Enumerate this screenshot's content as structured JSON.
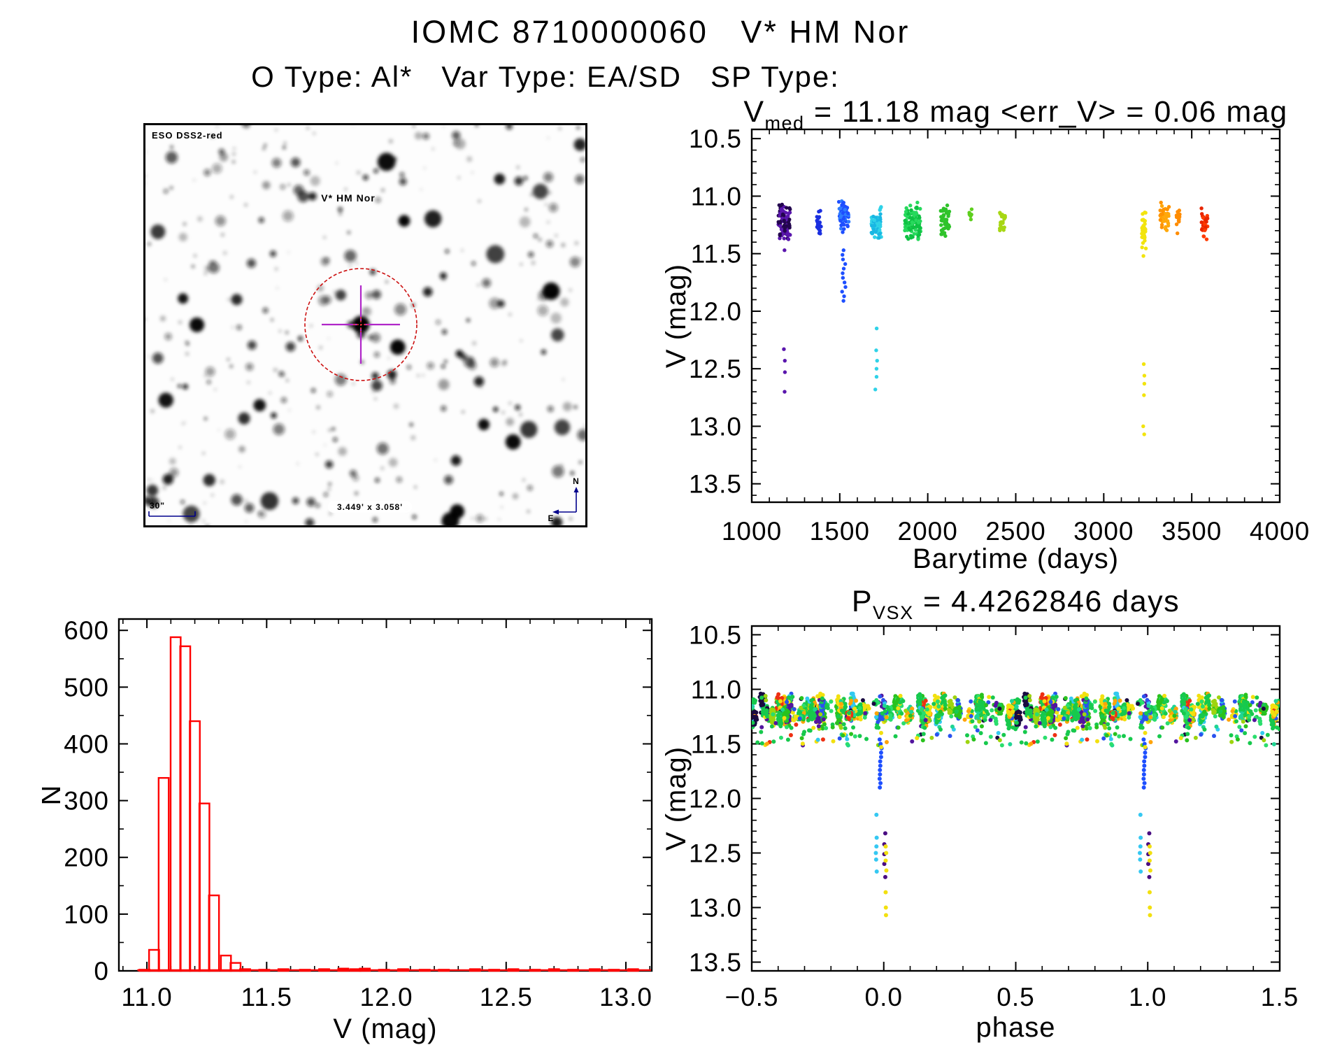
{
  "page": {
    "title": "IOMC 8710000060   V* HM Nor",
    "subtitle": "O Type: Al*   Var Type: EA/SD   SP Type:"
  },
  "finding_chart": {
    "survey_label": "ESO DSS2-red",
    "target_label": "V* HM Nor",
    "scale_label": "30\"",
    "fov_label": "3.449' x 3.058'",
    "compass_north": "N",
    "compass_east": "E",
    "annotation_color": "#00008b",
    "target_label_color": "#cc1111",
    "circle_color": "#cc1111",
    "cross_color": "#b026c9",
    "center_mark_color": "#e03030",
    "star_seed": 11,
    "star_count": 340,
    "big_star_count": 30
  },
  "chart_data": [
    {
      "type": "scatter",
      "title_parts": {
        "main": "V",
        "sub": "med",
        "rest": " = 11.18 mag <err_V> = 0.06 mag"
      },
      "xlabel": "Barytime (days)",
      "ylabel": "V (mag)",
      "xlim": [
        1000,
        4000
      ],
      "ylim": [
        10.42,
        13.66
      ],
      "xticks": [
        {
          "v": 1000,
          "l": "1000"
        },
        {
          "v": 1500,
          "l": "1500"
        },
        {
          "v": 2000,
          "l": "2000"
        },
        {
          "v": 2500,
          "l": "2500"
        },
        {
          "v": 3000,
          "l": "3000"
        },
        {
          "v": 3500,
          "l": "3500"
        },
        {
          "v": 4000,
          "l": "4000"
        }
      ],
      "yticks": [
        {
          "v": 10.5,
          "l": "10.5"
        },
        {
          "v": 11.0,
          "l": "11.0"
        },
        {
          "v": 11.5,
          "l": "11.5"
        },
        {
          "v": 12.0,
          "l": "12.0"
        },
        {
          "v": 12.5,
          "l": "12.5"
        },
        {
          "v": 13.0,
          "l": "13.0"
        },
        {
          "v": 13.5,
          "l": "13.5"
        }
      ],
      "x_minor": 100,
      "y_minor": 0.1,
      "grid": false,
      "seed": 77,
      "clusters": [
        {
          "x": 1185,
          "dx": 34,
          "n": 95,
          "y": [
            11.05,
            11.42
          ],
          "colors": [
            "#23054e",
            "#5a16ad"
          ]
        },
        {
          "x": 1382,
          "dx": 12,
          "n": 26,
          "y": [
            11.08,
            11.38
          ],
          "colors": [
            "#1b2fe0"
          ]
        },
        {
          "x": 1523,
          "dx": 28,
          "n": 60,
          "y": [
            10.98,
            11.33
          ],
          "colors": [
            "#1e4fff",
            "#2f7dff"
          ]
        },
        {
          "x": 1708,
          "dx": 28,
          "n": 55,
          "y": [
            11.08,
            11.4
          ],
          "colors": [
            "#19b7e3",
            "#2fd2e8"
          ]
        },
        {
          "x": 1915,
          "dx": 45,
          "n": 115,
          "y": [
            11.04,
            11.4
          ],
          "colors": [
            "#0fc143",
            "#27d95c"
          ]
        },
        {
          "x": 2098,
          "dx": 25,
          "n": 45,
          "y": [
            11.06,
            11.37
          ],
          "colors": [
            "#2fc32a"
          ]
        },
        {
          "x": 2243,
          "dx": 8,
          "n": 9,
          "y": [
            11.1,
            11.23
          ],
          "colors": [
            "#5ecf1e"
          ]
        },
        {
          "x": 2425,
          "dx": 16,
          "n": 22,
          "y": [
            11.08,
            11.32
          ],
          "colors": [
            "#a7d714"
          ]
        },
        {
          "x": 3228,
          "dx": 12,
          "n": 34,
          "y": [
            11.1,
            11.47
          ],
          "colors": [
            "#f2e40d"
          ]
        },
        {
          "x": 3346,
          "dx": 25,
          "n": 42,
          "y": [
            11.04,
            11.31
          ],
          "colors": [
            "#ffa80a",
            "#ff9300"
          ]
        },
        {
          "x": 3424,
          "dx": 12,
          "n": 16,
          "y": [
            11.09,
            11.35
          ],
          "colors": [
            "#ff8c00"
          ]
        },
        {
          "x": 3572,
          "dx": 18,
          "n": 30,
          "y": [
            11.06,
            11.39
          ],
          "colors": [
            "#ff3a00",
            "#e82500"
          ]
        }
      ],
      "trails": [
        {
          "x": 1523,
          "dx": 10,
          "color": "#1e4fff",
          "ys": [
            11.47,
            11.51,
            11.55,
            11.59,
            11.63,
            11.67,
            11.71,
            11.75,
            11.79,
            11.83,
            11.87,
            11.91
          ]
        }
      ],
      "outliers": [
        {
          "x": 1185,
          "dx": 6,
          "color": "#5a16ad",
          "ys": [
            11.47,
            12.33,
            12.43,
            12.53,
            12.7
          ]
        },
        {
          "x": 1708,
          "dx": 6,
          "color": "#2fd2e8",
          "ys": [
            12.15,
            12.34,
            12.43,
            12.5,
            12.57,
            12.68
          ]
        },
        {
          "x": 3228,
          "dx": 6,
          "color": "#f2e40d",
          "ys": [
            11.52,
            12.46,
            12.56,
            12.63,
            12.73,
            13.0,
            13.07
          ]
        }
      ]
    },
    {
      "type": "histogram",
      "xlabel": "V (mag)",
      "ylabel": "N",
      "xlim": [
        10.883,
        13.108
      ],
      "ylim": [
        620,
        0
      ],
      "xticks": [
        {
          "v": 11.0,
          "l": "11.0"
        },
        {
          "v": 11.5,
          "l": "11.5"
        },
        {
          "v": 12.0,
          "l": "12.0"
        },
        {
          "v": 12.5,
          "l": "12.5"
        },
        {
          "v": 13.0,
          "l": "13.0"
        }
      ],
      "yticks": [
        {
          "v": 0,
          "l": "0"
        },
        {
          "v": 100,
          "l": "100"
        },
        {
          "v": 200,
          "l": "200"
        },
        {
          "v": 300,
          "l": "300"
        },
        {
          "v": 400,
          "l": "400"
        },
        {
          "v": 500,
          "l": "500"
        },
        {
          "v": 600,
          "l": "600"
        }
      ],
      "x_minor": 0.1,
      "y_minor": 50,
      "bar_color": "#ff0000",
      "bin_width": 0.042,
      "baseline_extent": [
        10.96,
        13.105
      ],
      "bins": [
        {
          "x": 10.99,
          "n": 2
        },
        {
          "x": 11.03,
          "n": 37
        },
        {
          "x": 11.07,
          "n": 340
        },
        {
          "x": 11.12,
          "n": 588
        },
        {
          "x": 11.16,
          "n": 572
        },
        {
          "x": 11.2,
          "n": 440
        },
        {
          "x": 11.24,
          "n": 295
        },
        {
          "x": 11.28,
          "n": 133
        },
        {
          "x": 11.33,
          "n": 27
        },
        {
          "x": 11.37,
          "n": 14
        },
        {
          "x": 11.41,
          "n": 3
        },
        {
          "x": 11.49,
          "n": 2
        },
        {
          "x": 11.57,
          "n": 3
        },
        {
          "x": 11.66,
          "n": 2
        },
        {
          "x": 11.74,
          "n": 3
        },
        {
          "x": 11.82,
          "n": 4
        },
        {
          "x": 11.87,
          "n": 3
        },
        {
          "x": 11.91,
          "n": 4
        },
        {
          "x": 11.99,
          "n": 2
        },
        {
          "x": 12.07,
          "n": 3
        },
        {
          "x": 12.16,
          "n": 2
        },
        {
          "x": 12.24,
          "n": 2
        },
        {
          "x": 12.37,
          "n": 3
        },
        {
          "x": 12.45,
          "n": 2
        },
        {
          "x": 12.53,
          "n": 3
        },
        {
          "x": 12.62,
          "n": 2
        },
        {
          "x": 12.7,
          "n": 3
        },
        {
          "x": 12.78,
          "n": 2
        },
        {
          "x": 12.87,
          "n": 3
        },
        {
          "x": 12.95,
          "n": 2
        },
        {
          "x": 13.03,
          "n": 3
        }
      ]
    },
    {
      "type": "scatter",
      "title_parts": {
        "main": "P",
        "sub": "VSX",
        "rest": " = 4.4262846 days"
      },
      "xlabel": "phase",
      "ylabel": "V (mag)",
      "xlim": [
        -0.5,
        1.5
      ],
      "ylim": [
        10.42,
        13.58
      ],
      "xticks": [
        {
          "v": -0.5,
          "l": "−0.5"
        },
        {
          "v": 0.0,
          "l": "0.0"
        },
        {
          "v": 0.5,
          "l": "0.5"
        },
        {
          "v": 1.0,
          "l": "1.0"
        },
        {
          "v": 1.5,
          "l": "1.5"
        }
      ],
      "yticks": [
        {
          "v": 10.5,
          "l": "10.5"
        },
        {
          "v": 11.0,
          "l": "11.0"
        },
        {
          "v": 11.5,
          "l": "11.5"
        },
        {
          "v": 12.0,
          "l": "12.0"
        },
        {
          "v": 12.5,
          "l": "12.5"
        },
        {
          "v": 13.0,
          "l": "13.0"
        },
        {
          "v": 13.5,
          "l": "13.5"
        }
      ],
      "x_minor": 0.1,
      "y_minor": 0.1,
      "seed": 42,
      "band": {
        "y_top": 11.04,
        "y_bottom": 11.44,
        "clumps": 85,
        "clump_w": [
          0.004,
          0.014
        ],
        "clump_n": [
          6,
          34
        ],
        "singles": 180,
        "colors": [
          [
            "#17c94d",
            26
          ],
          [
            "#2ade6d",
            12
          ],
          [
            "#29c21d",
            10
          ],
          [
            "#1fd593",
            7
          ],
          [
            "#f2e00f",
            10
          ],
          [
            "#ffa40a",
            8
          ],
          [
            "#32c9f0",
            6
          ],
          [
            "#2a52ee",
            4
          ],
          [
            "#190a40",
            5
          ],
          [
            "#53159e",
            5
          ],
          [
            "#ee3012",
            3
          ],
          [
            "#9ed40e",
            4
          ]
        ],
        "thin_windows": [
          [
            -0.05,
            0.05
          ],
          [
            0.95,
            1.05
          ]
        ],
        "thin_factor": 0.5
      },
      "eclipse_groups": [
        {
          "x": -0.012,
          "dx": 0.004,
          "color": "#1e4fff",
          "ys": [
            11.46,
            11.5,
            11.54,
            11.58,
            11.62,
            11.66,
            11.7,
            11.74,
            11.78,
            11.82,
            11.86,
            11.9
          ]
        },
        {
          "x": -0.01,
          "dx": 0.002,
          "color": "#f2e00f",
          "ys": [
            11.4,
            11.53
          ]
        },
        {
          "x": -0.028,
          "dx": 0.002,
          "color": "#35c8f2",
          "ys": [
            12.15,
            12.36,
            12.44,
            12.5,
            12.56,
            12.67
          ]
        },
        {
          "x": 0.004,
          "dx": 0.002,
          "color": "#4a0d82",
          "ys": [
            12.32,
            12.42,
            12.51,
            12.6,
            12.72
          ]
        },
        {
          "x": 0.008,
          "dx": 0.002,
          "color": "#f2e00f",
          "ys": [
            12.44,
            12.5,
            12.57,
            12.66,
            12.86,
            13.0,
            13.07
          ]
        }
      ],
      "phase_repeat": 1.0
    }
  ]
}
